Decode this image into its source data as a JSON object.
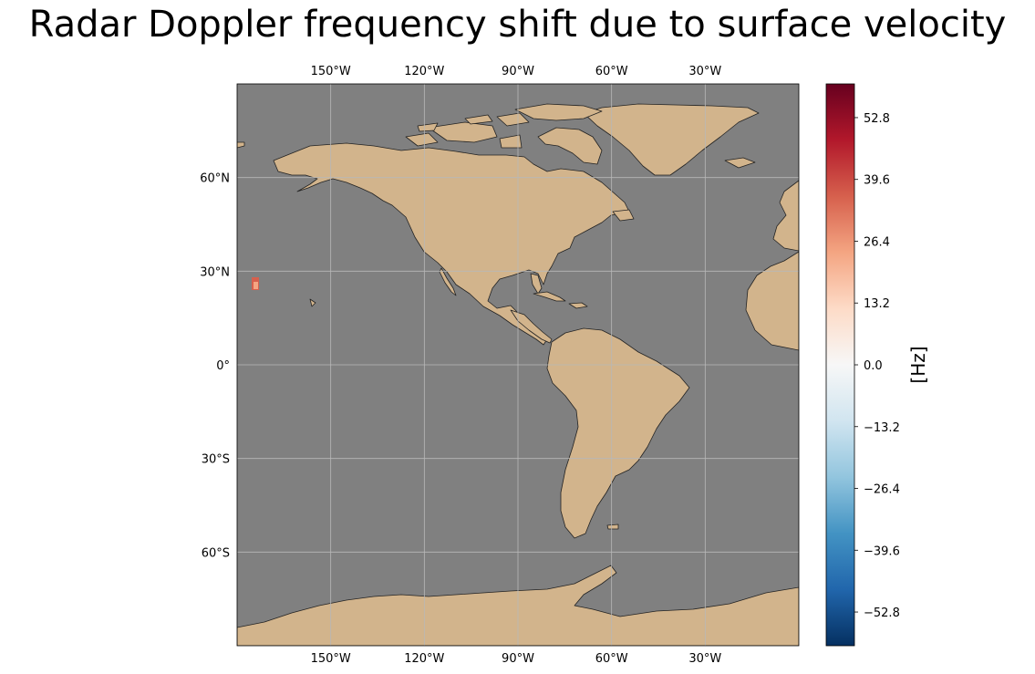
{
  "title": "Radar Doppler frequency shift due to surface velocity",
  "map": {
    "ocean_color": "#808080",
    "land_color": "#d2b48c",
    "gridline_color": "#b8b8b8",
    "lon_ticks": [
      {
        "lon": -150,
        "label": "150°W"
      },
      {
        "lon": -120,
        "label": "120°W"
      },
      {
        "lon": -90,
        "label": "90°W"
      },
      {
        "lon": -60,
        "label": "60°W"
      },
      {
        "lon": -30,
        "label": "30°W"
      }
    ],
    "lat_ticks": [
      {
        "lat": 60,
        "label": "60°N"
      },
      {
        "lat": 30,
        "label": "30°N"
      },
      {
        "lat": 0,
        "label": "0°"
      },
      {
        "lat": -30,
        "label": "30°S"
      },
      {
        "lat": -60,
        "label": "60°S"
      }
    ]
  },
  "colorbar": {
    "label": "[Hz]",
    "colormap": "RdBu_r",
    "range": [
      -60,
      60
    ],
    "ticks": [
      {
        "value": 52.8,
        "label": "52.8"
      },
      {
        "value": 39.6,
        "label": "39.6"
      },
      {
        "value": 26.4,
        "label": "26.4"
      },
      {
        "value": 13.2,
        "label": "13.2"
      },
      {
        "value": 0.0,
        "label": "0.0"
      },
      {
        "value": -13.2,
        "label": "−13.2"
      },
      {
        "value": -26.4,
        "label": "−26.4"
      },
      {
        "value": -39.6,
        "label": "−39.6"
      },
      {
        "value": -52.8,
        "label": "−52.8"
      }
    ],
    "stops": [
      "#053061",
      "#2166ac",
      "#4393c3",
      "#92c5de",
      "#d1e5f0",
      "#f7f7f7",
      "#fddbc7",
      "#f4a582",
      "#d6604d",
      "#b2182b",
      "#67001f"
    ]
  }
}
